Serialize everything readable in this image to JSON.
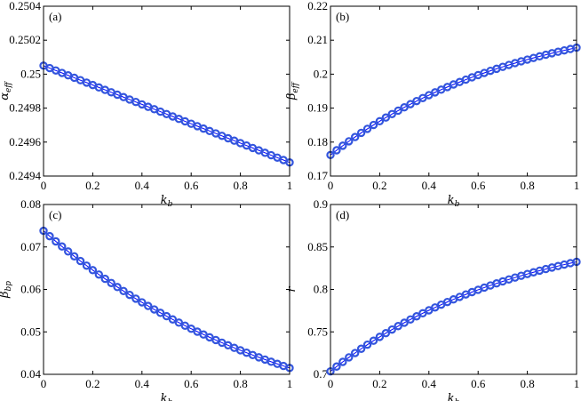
{
  "chart_data": [
    {
      "type": "scatter",
      "panel_label": "(a)",
      "xlabel": "k",
      "xlabel_sub": "b",
      "ylabel": "α",
      "ylabel_sub": "eff",
      "xlim": [
        0,
        1
      ],
      "ylim": [
        0.2494,
        0.2504
      ],
      "xticks": [
        0,
        0.2,
        0.4,
        0.6,
        0.8,
        1
      ],
      "xtick_labels": [
        "0",
        "0.2",
        "0.4",
        "0.6",
        "0.8",
        "1"
      ],
      "yticks": [
        0.2494,
        0.2496,
        0.2498,
        0.25,
        0.2502,
        0.2504
      ],
      "ytick_labels": [
        "0.2494",
        "0.2496",
        "0.2498",
        "0.25",
        "0.2502",
        "0.2504"
      ],
      "grid": false,
      "series": [
        {
          "color": "#0000ff",
          "marker_color": "#3355dd",
          "start": 0.25005,
          "end": 0.24948,
          "curve": 0.0
        }
      ]
    },
    {
      "type": "scatter",
      "panel_label": "(b)",
      "xlabel": "k",
      "xlabel_sub": "b",
      "ylabel": "β",
      "ylabel_sub": "eff",
      "xlim": [
        0,
        1
      ],
      "ylim": [
        0.17,
        0.22
      ],
      "xticks": [
        0,
        0.2,
        0.4,
        0.6,
        0.8,
        1
      ],
      "xtick_labels": [
        "0",
        "0.2",
        "0.4",
        "0.6",
        "0.8",
        "1"
      ],
      "yticks": [
        0.17,
        0.18,
        0.19,
        0.2,
        0.21,
        0.22
      ],
      "ytick_labels": [
        "0.17",
        "0.18",
        "0.19",
        "0.2",
        "0.21",
        "0.22"
      ],
      "grid": false,
      "series": [
        {
          "color": "#0000ff",
          "marker_color": "#3355dd",
          "start": 0.1762,
          "end": 0.2078,
          "curve": 1.3
        }
      ]
    },
    {
      "type": "scatter",
      "panel_label": "(c)",
      "xlabel": "k",
      "xlabel_sub": "b",
      "ylabel": "β",
      "ylabel_sub": "bp",
      "xlim": [
        0,
        1
      ],
      "ylim": [
        0.04,
        0.08
      ],
      "xticks": [
        0,
        0.2,
        0.4,
        0.6,
        0.8,
        1
      ],
      "xtick_labels": [
        "0",
        "0.2",
        "0.4",
        "0.6",
        "0.8",
        "1"
      ],
      "yticks": [
        0.04,
        0.05,
        0.06,
        0.07,
        0.08
      ],
      "ytick_labels": [
        "0.04",
        "0.05",
        "0.06",
        "0.07",
        "0.08"
      ],
      "grid": false,
      "series": [
        {
          "color": "#0000ff",
          "marker_color": "#3355dd",
          "start": 0.0738,
          "end": 0.0415,
          "curve": 1.0
        }
      ]
    },
    {
      "type": "scatter",
      "panel_label": "(d)",
      "xlabel": "k",
      "xlabel_sub": "b",
      "ylabel": "r",
      "ylabel_sub": "",
      "xlim": [
        0,
        1
      ],
      "ylim": [
        0.7,
        0.9
      ],
      "xticks": [
        0,
        0.2,
        0.4,
        0.6,
        0.8,
        1
      ],
      "xtick_labels": [
        "0",
        "0.2",
        "0.4",
        "0.6",
        "0.8",
        "1"
      ],
      "yticks": [
        0.7,
        0.75,
        0.8,
        0.85,
        0.9
      ],
      "ytick_labels": [
        "0.7",
        "0.75",
        "0.8",
        "0.85",
        "0.9"
      ],
      "grid": false,
      "series": [
        {
          "color": "#0000ff",
          "marker_color": "#3355dd",
          "start": 0.7035,
          "end": 0.8325,
          "curve": 1.3
        }
      ]
    }
  ]
}
